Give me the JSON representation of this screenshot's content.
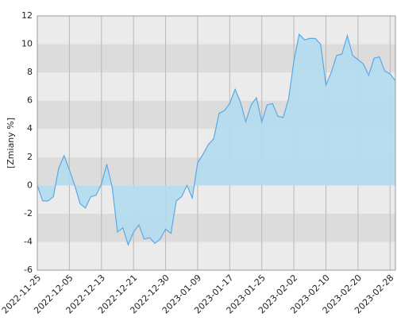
{
  "chart_data": {
    "type": "area",
    "y_label": "[Zmiany %]",
    "categories": [
      "2022-11-25",
      null,
      null,
      null,
      null,
      null,
      "2022-12-05",
      null,
      null,
      null,
      null,
      null,
      "2022-12-13",
      null,
      null,
      null,
      null,
      null,
      "2022-12-21",
      null,
      null,
      null,
      null,
      null,
      "2022-12-30",
      null,
      null,
      null,
      null,
      null,
      "2023-01-09",
      null,
      null,
      null,
      null,
      null,
      "2023-01-17",
      null,
      null,
      null,
      null,
      null,
      "2023-01-25",
      null,
      null,
      null,
      null,
      null,
      "2023-02-02",
      null,
      null,
      null,
      null,
      null,
      "2023-02-10",
      null,
      null,
      null,
      null,
      null,
      "2023-02-20",
      null,
      null,
      null,
      null,
      null,
      "2023-02-28",
      null
    ],
    "values": [
      0,
      -1.1,
      -1.1,
      -0.8,
      1.2,
      2.1,
      1.1,
      0,
      -1.3,
      -1.6,
      -0.8,
      -0.7,
      0.1,
      1.5,
      -0.1,
      -3.3,
      -3.0,
      -4.2,
      -3.3,
      -2.8,
      -3.8,
      -3.7,
      -4.1,
      -3.8,
      -3.1,
      -3.4,
      -1.1,
      -0.8,
      0,
      -0.9,
      1.6,
      2.2,
      2.9,
      3.3,
      5.1,
      5.3,
      5.8,
      6.8,
      5.9,
      4.5,
      5.7,
      6.2,
      4.5,
      5.7,
      5.8,
      4.9,
      4.8,
      6.1,
      8.8,
      10.7,
      10.3,
      10.4,
      10.4,
      10.0,
      7.1,
      8.0,
      9.2,
      9.3,
      10.6,
      9.2,
      8.9,
      8.6,
      7.8,
      9.0,
      9.1,
      8.1,
      7.9,
      7.4
    ],
    "color": "#5aa9e6",
    "fill": "#b3dcef",
    "ylim": [
      -6,
      12
    ],
    "yticks": [
      -6,
      -4,
      -2,
      0,
      2,
      4,
      6,
      8,
      10,
      12
    ],
    "band_colors": [
      "#ebebeb",
      "#dcdcdc"
    ],
    "grid": true
  }
}
